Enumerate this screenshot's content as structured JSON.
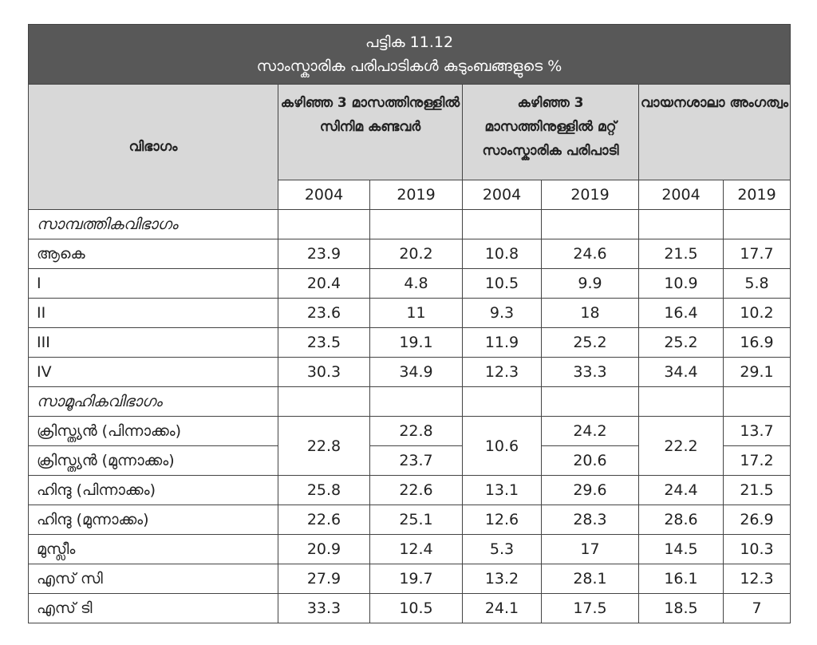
{
  "title": {
    "line1": "പട്ടിക 11.12",
    "line2": "സാംസ്കാരിക പരിപാടികൾ കുടുംബങ്ങളുടെ %"
  },
  "header": {
    "category": "വിഭാഗം",
    "groups": [
      "കഴിഞ്ഞ 3 മാസത്തിനുള്ളിൽ സിനിമ കണ്ടവർ",
      "കഴിഞ്ഞ 3 മാസത്തിനുള്ളിൽ മറ്റ് സാംസ്കാരിക പരിപാടി",
      "വായനശാലാ അംഗത്വം"
    ],
    "years": [
      "2004",
      "2019",
      "2004",
      "2019",
      "2004",
      "2019"
    ]
  },
  "rows": [
    {
      "label": "സാമ്പത്തികവിഭാഗം",
      "section": true,
      "values": [
        "",
        "",
        "",
        "",
        "",
        ""
      ]
    },
    {
      "label": "ആകെ",
      "values": [
        "23.9",
        "20.2",
        "10.8",
        "24.6",
        "21.5",
        "17.7"
      ]
    },
    {
      "label": "I",
      "values": [
        "20.4",
        "4.8",
        "10.5",
        "9.9",
        "10.9",
        "5.8"
      ]
    },
    {
      "label": "II",
      "values": [
        "23.6",
        "11",
        "9.3",
        "18",
        "16.4",
        "10.2"
      ]
    },
    {
      "label": "III",
      "values": [
        "23.5",
        "19.1",
        "11.9",
        "25.2",
        "25.2",
        "16.9"
      ]
    },
    {
      "label": "IV",
      "values": [
        "30.3",
        "34.9",
        "12.3",
        "33.3",
        "34.4",
        "29.1"
      ]
    },
    {
      "label": "സാമൂഹികവിഭാഗം",
      "section": true,
      "values": [
        "",
        "",
        "",
        "",
        "",
        ""
      ]
    },
    {
      "label": "ക്രിസ്ത്യൻ (പിന്നാക്കം)",
      "values": [
        "22.8",
        "22.8",
        "10.6",
        "24.2",
        "22.2",
        "13.7"
      ],
      "merged_with_next": [
        0,
        2,
        4
      ]
    },
    {
      "label": "ക്രിസ്ത്യൻ (മുന്നാക്കം)",
      "values": [
        null,
        "23.7",
        null,
        "20.6",
        null,
        "17.2"
      ]
    },
    {
      "label": "ഹിന്ദു (പിന്നാക്കം)",
      "values": [
        "25.8",
        "22.6",
        "13.1",
        "29.6",
        "24.4",
        "21.5"
      ]
    },
    {
      "label": "ഹിന്ദു (മുന്നാക്കം)",
      "values": [
        "22.6",
        "25.1",
        "12.6",
        "28.3",
        "28.6",
        "26.9"
      ]
    },
    {
      "label": "മുസ്ലീം",
      "values": [
        "20.9",
        "12.4",
        "5.3",
        "17",
        "14.5",
        "10.3"
      ]
    },
    {
      "label": "എസ് സി",
      "values": [
        "27.9",
        "19.7",
        "13.2",
        "28.1",
        "16.1",
        "12.3"
      ]
    },
    {
      "label": "എസ് ടി",
      "values": [
        "33.3",
        "10.5",
        "24.1",
        "17.5",
        "18.5",
        "7"
      ]
    }
  ]
}
